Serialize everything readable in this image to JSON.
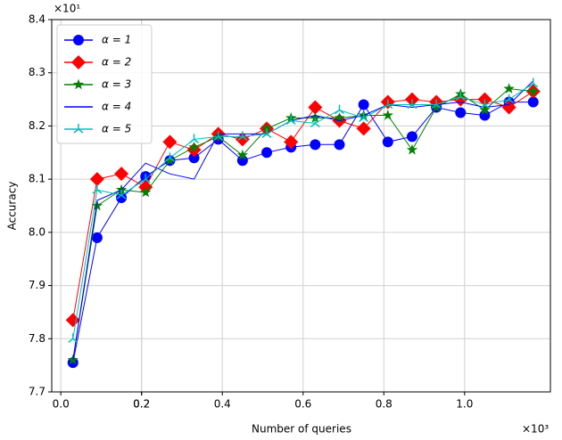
{
  "chart_data": {
    "type": "line",
    "x_label": "Number of queries",
    "y_label": "Accuracy",
    "x_multiplier": "×10³",
    "y_multiplier": "×10¹",
    "x": [
      0.03,
      0.09,
      0.15,
      0.21,
      0.27,
      0.33,
      0.39,
      0.45,
      0.51,
      0.57,
      0.63,
      0.69,
      0.75,
      0.81,
      0.87,
      0.93,
      0.99,
      1.05,
      1.11,
      1.17
    ],
    "series": [
      {
        "name": "α = 1",
        "color": "#0000ff",
        "marker": "circle",
        "values": [
          7.755,
          7.99,
          8.065,
          8.105,
          8.135,
          8.14,
          8.175,
          8.135,
          8.15,
          8.16,
          8.165,
          8.165,
          8.24,
          8.17,
          8.18,
          8.235,
          8.225,
          8.22,
          8.245,
          8.245
        ]
      },
      {
        "name": "α = 2",
        "color": "#ff0000",
        "marker": "diamond",
        "values": [
          7.835,
          8.1,
          8.11,
          8.085,
          8.17,
          8.155,
          8.185,
          8.175,
          8.195,
          8.17,
          8.235,
          8.21,
          8.195,
          8.245,
          8.25,
          8.245,
          8.25,
          8.25,
          8.235,
          8.265
        ]
      },
      {
        "name": "α = 3",
        "color": "#008000",
        "marker": "star",
        "values": [
          7.76,
          8.05,
          8.08,
          8.075,
          8.135,
          8.16,
          8.18,
          8.145,
          8.195,
          8.215,
          8.215,
          8.215,
          8.22,
          8.22,
          8.155,
          8.235,
          8.26,
          8.23,
          8.27,
          8.265
        ]
      },
      {
        "name": "α = 4",
        "color": "#0000ff",
        "marker": "none",
        "values": [
          7.76,
          8.06,
          8.08,
          8.13,
          8.11,
          8.1,
          8.185,
          8.185,
          8.185,
          8.21,
          8.22,
          8.21,
          8.22,
          8.24,
          8.235,
          8.24,
          8.245,
          8.235,
          8.24,
          8.285
        ]
      },
      {
        "name": "α = 5",
        "color": "#00bfbf",
        "marker": "tri",
        "values": [
          7.8,
          8.08,
          8.07,
          8.1,
          8.14,
          8.175,
          8.18,
          8.18,
          8.185,
          8.21,
          8.205,
          8.23,
          8.215,
          8.24,
          8.24,
          8.24,
          8.255,
          8.24,
          8.25,
          8.28
        ]
      }
    ],
    "xlim": [
      -0.0225,
      1.2125
    ],
    "xticks": [
      {
        "value": 0,
        "label": "0.0"
      },
      0.2,
      0.4,
      0.6,
      0.8,
      {
        "value": 1,
        "label": "1.0"
      },
      0.2
    ],
    "ylim": [
      7.7,
      8.4
    ],
    "yticks": [
      7.7,
      7.8,
      7.9,
      {
        "value": 8,
        "label": "8.0"
      },
      8.1,
      8.2,
      8.3,
      8.4
    ],
    "grid": true,
    "legend": "upper-left"
  }
}
